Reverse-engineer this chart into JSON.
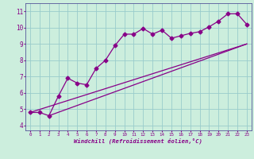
{
  "xlabel": "Windchill (Refroidissement éolien,°C)",
  "bg_color": "#cceedd",
  "line_color": "#880088",
  "x_ticks": [
    0,
    1,
    2,
    3,
    4,
    5,
    6,
    7,
    8,
    9,
    10,
    11,
    12,
    13,
    14,
    15,
    16,
    17,
    18,
    19,
    20,
    21,
    22,
    23
  ],
  "y_ticks": [
    4,
    5,
    6,
    7,
    8,
    9,
    10,
    11
  ],
  "xlim": [
    -0.5,
    23.5
  ],
  "ylim": [
    3.7,
    11.5
  ],
  "curve1_x": [
    0,
    1,
    2,
    3,
    4,
    5,
    6,
    7,
    8,
    9,
    10,
    11,
    12,
    13,
    14,
    15,
    16,
    17,
    18,
    19,
    20,
    21,
    22,
    23
  ],
  "curve1_y": [
    4.8,
    4.8,
    4.6,
    5.8,
    6.9,
    6.6,
    6.5,
    7.5,
    8.0,
    8.9,
    9.6,
    9.6,
    9.95,
    9.6,
    9.85,
    9.35,
    9.5,
    9.65,
    9.75,
    10.05,
    10.4,
    10.85,
    10.85,
    10.2
  ],
  "curve2_x": [
    0,
    23
  ],
  "curve2_y": [
    4.8,
    9.0
  ],
  "curve3_x": [
    2,
    23
  ],
  "curve3_y": [
    4.6,
    9.0
  ],
  "grid_color": "#99cccc",
  "marker": "D",
  "marker_size": 2.5,
  "line_width": 0.9
}
